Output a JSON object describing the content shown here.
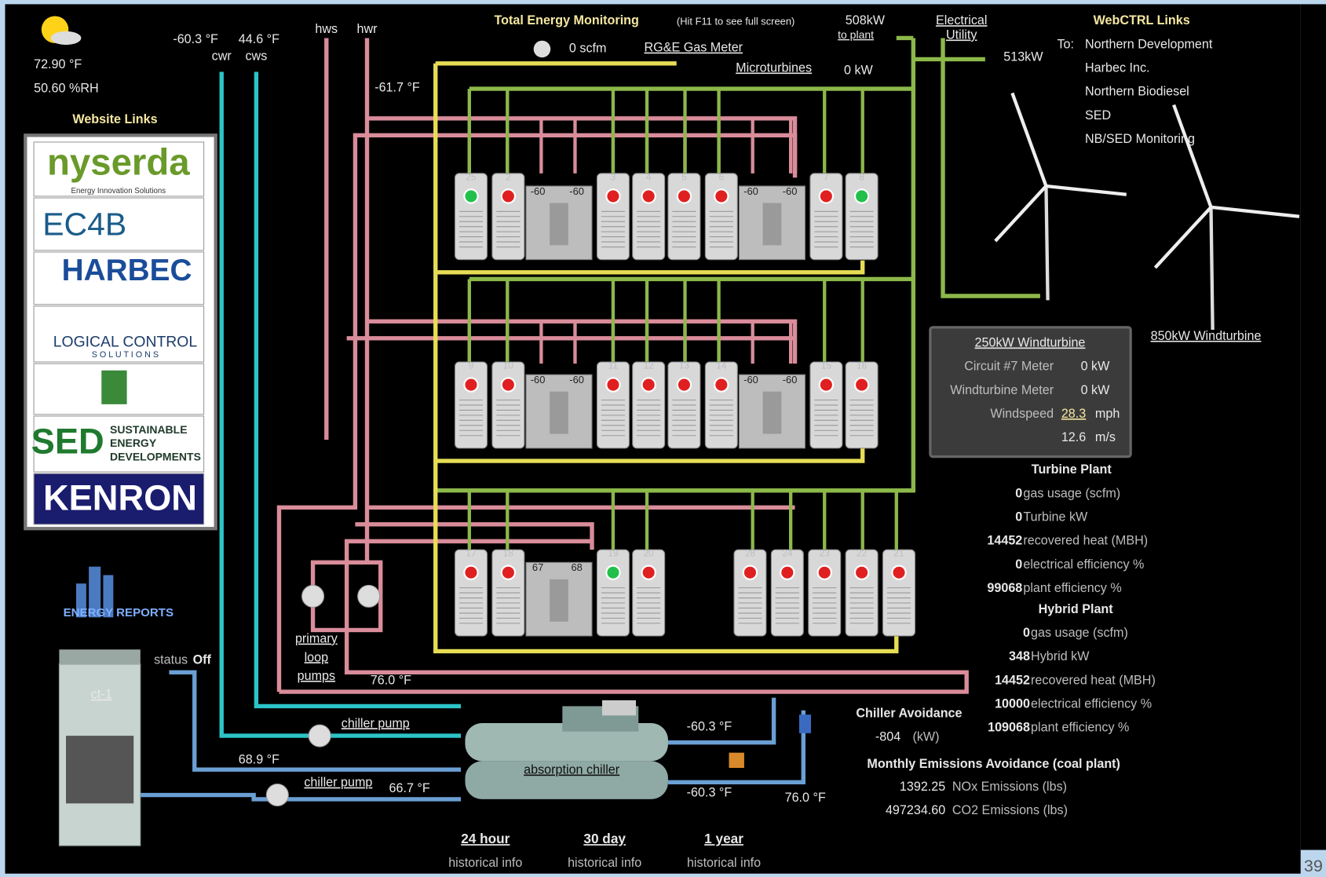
{
  "weather": {
    "temperature": "72.90 °F",
    "humidity": "50.60 %RH"
  },
  "website_links": {
    "title": "Website Links",
    "nyserda": "nyserda",
    "nyserda_tag": "Energy Innovation Solutions",
    "ec4b": "EC4B",
    "harbec": "HARBEC",
    "logical": "LOGICAL CONTROL",
    "logical_sub": "S O L U T I O N S",
    "sed": "SED",
    "sed_text": [
      "SUSTAINABLE",
      "ENERGY",
      "DEVELOPMENTS"
    ],
    "kenron": "KENRON",
    "energy_reports": "ENERGY REPORTS"
  },
  "supply": {
    "cwr_temp": "-60.3 °F",
    "cws_temp": "44.6 °F",
    "cwr": "cwr",
    "cws": "cws",
    "hws": "hws",
    "hwr": "hwr",
    "hw_temp": "-61.7 °F"
  },
  "header": {
    "title": "Total Energy Monitoring",
    "hint": "(Hit F11 to see full screen)",
    "gas_flow": "0 scfm",
    "gas_meter": "RG&E Gas Meter",
    "microturbines": "Microturbines",
    "microturbines_kw": "0 kW",
    "to_plant_kw": "508kW",
    "to_plant": "to plant",
    "utility": [
      "Electrical",
      "Utility"
    ],
    "utility_kw": "513kW"
  },
  "webctrl": {
    "title": "WebCTRL Links",
    "to": "To:",
    "links": [
      "Northern Development",
      "Harbec Inc.",
      "Northern Biodiesel",
      "SED",
      "NB/SED Monitoring"
    ]
  },
  "windturbine_250": {
    "title": "250kW Windturbine",
    "circuit_label": "Circuit #7 Meter",
    "circuit_value": "0 kW",
    "meter_label": "Windturbine Meter",
    "meter_value": "0 kW",
    "windspeed_label": "Windspeed",
    "windspeed_mph": "28.3",
    "mph": "mph",
    "windspeed_ms": "12.6",
    "ms": "m/s"
  },
  "windturbine_850": {
    "title": "850kW Windturbine"
  },
  "turbine_plant": {
    "title": "Turbine Plant",
    "rows": [
      {
        "value": "0",
        "label": "gas usage (scfm)"
      },
      {
        "value": "0",
        "label": "Turbine kW"
      },
      {
        "value": "14452",
        "label": "recovered heat (MBH)"
      },
      {
        "value": "0",
        "label": "electrical efficiency %"
      },
      {
        "value": "99068",
        "label": "plant efficiency %"
      }
    ]
  },
  "hybrid_plant": {
    "title": "Hybrid Plant",
    "rows": [
      {
        "value": "0",
        "label": "gas usage (scfm)"
      },
      {
        "value": "348",
        "label": "Hybrid kW"
      },
      {
        "value": "14452",
        "label": "recovered heat (MBH)"
      },
      {
        "value": "10000",
        "label": "electrical efficiency %"
      },
      {
        "value": "109068",
        "label": "plant efficiency %"
      }
    ]
  },
  "chiller_avoidance": {
    "title": "Chiller Avoidance",
    "value": "-804",
    "unit": "(kW)"
  },
  "emissions": {
    "title": "Monthly Emissions Avoidance (coal plant)",
    "rows": [
      {
        "value": "1392.25",
        "label": "NOx Emissions (lbs)"
      },
      {
        "value": "497234.60",
        "label": "CO2 Emissions (lbs)"
      }
    ]
  },
  "cooling_tower": {
    "status_label": "status",
    "status": "Off",
    "name": "ct-1"
  },
  "loop": {
    "primary_pumps": [
      "primary",
      "loop",
      "pumps"
    ],
    "return_temp": "76.0 °F"
  },
  "chiller": {
    "pump_1": "chiller pump",
    "pump_1_temp": "68.9 °F",
    "pump_2": "chiller pump",
    "pump_2_temp": "66.7 °F",
    "name": "absorption chiller",
    "out_temp_1": "-60.3 °F",
    "out_temp_2": "-60.3 °F",
    "return_temp": "76.0 °F"
  },
  "history": [
    {
      "period": "24 hour",
      "label": "historical info"
    },
    {
      "period": "30 day",
      "label": "historical info"
    },
    {
      "period": "1 year",
      "label": "historical info"
    }
  ],
  "microturbines": {
    "rows": [
      {
        "units": [
          {
            "id": "25",
            "led": "#22c04a"
          },
          {
            "id": "2",
            "led": "#e02020"
          },
          {
            "id": "3",
            "led": "#e02020"
          },
          {
            "id": "4",
            "led": "#e02020"
          },
          {
            "id": "5",
            "led": "#e02020"
          },
          {
            "id": "6",
            "led": "#e02020"
          },
          {
            "id": "7",
            "led": "#e02020"
          },
          {
            "id": "8",
            "led": "#22c04a"
          }
        ],
        "hx": [
          [
            "-60",
            "-60"
          ],
          [
            "-60",
            "-60"
          ]
        ]
      },
      {
        "units": [
          {
            "id": "9",
            "led": "#e02020"
          },
          {
            "id": "10",
            "led": "#e02020"
          },
          {
            "id": "11",
            "led": "#e02020"
          },
          {
            "id": "12",
            "led": "#e02020"
          },
          {
            "id": "13",
            "led": "#e02020"
          },
          {
            "id": "14",
            "led": "#e02020"
          },
          {
            "id": "15",
            "led": "#e02020"
          },
          {
            "id": "16",
            "led": "#e02020"
          }
        ],
        "hx": [
          [
            "-60",
            "-60"
          ],
          [
            "-60",
            "-60"
          ]
        ]
      },
      {
        "units": [
          {
            "id": "17",
            "led": "#e02020"
          },
          {
            "id": "18",
            "led": "#e02020"
          },
          {
            "id": "19",
            "led": "#22c04a"
          },
          {
            "id": "20",
            "led": "#e02020"
          },
          {
            "id": "28",
            "led": "#e02020"
          },
          {
            "id": "24",
            "led": "#e02020"
          },
          {
            "id": "23",
            "led": "#e02020"
          },
          {
            "id": "22",
            "led": "#e02020"
          },
          {
            "id": "21",
            "led": "#e02020"
          }
        ],
        "hx": [
          [
            "67",
            "68"
          ]
        ]
      }
    ]
  },
  "page_number": "39"
}
